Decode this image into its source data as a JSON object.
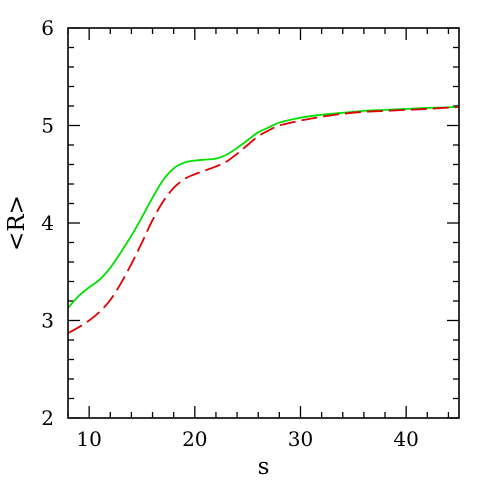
{
  "chart_data": {
    "type": "line",
    "title": "",
    "xlabel": "s",
    "ylabel": "<R>",
    "xlim": [
      8,
      45
    ],
    "ylim": [
      2,
      6
    ],
    "grid": false,
    "x_major_ticks": [
      10,
      20,
      30,
      40
    ],
    "x_minor_ticks": [
      8,
      12,
      14,
      16,
      18,
      22,
      24,
      26,
      28,
      32,
      34,
      36,
      38,
      42,
      44
    ],
    "y_major_ticks": [
      2,
      3,
      4,
      5,
      6
    ],
    "y_minor_ticks": [
      2.2,
      2.4,
      2.6,
      2.8,
      3.2,
      3.4,
      3.6,
      3.8,
      4.2,
      4.4,
      4.6,
      4.8,
      5.2,
      5.4,
      5.6,
      5.8
    ],
    "x_tick_labels": [
      "10",
      "20",
      "30",
      "40"
    ],
    "y_tick_labels": [
      "2",
      "3",
      "4",
      "5",
      "6"
    ],
    "series": [
      {
        "color": "#00e000",
        "style": "solid",
        "x": [
          8,
          9,
          10,
          11,
          12,
          13,
          14,
          15,
          16,
          17,
          18,
          19,
          20,
          21,
          22,
          23,
          24,
          25,
          26,
          27,
          28,
          30,
          32,
          34,
          36,
          38,
          40,
          42,
          45
        ],
        "y": [
          3.13,
          3.25,
          3.34,
          3.42,
          3.54,
          3.7,
          3.87,
          4.06,
          4.26,
          4.44,
          4.56,
          4.62,
          4.64,
          4.65,
          4.66,
          4.7,
          4.77,
          4.85,
          4.93,
          4.98,
          5.03,
          5.08,
          5.11,
          5.13,
          5.15,
          5.16,
          5.17,
          5.18,
          5.19
        ]
      },
      {
        "color": "#e00000",
        "style": "dashed",
        "x": [
          8,
          9,
          10,
          11,
          12,
          13,
          14,
          15,
          16,
          17,
          18,
          19,
          20,
          21,
          22,
          23,
          24,
          25,
          26,
          27,
          28,
          30,
          32,
          34,
          36,
          38,
          40,
          42,
          45
        ],
        "y": [
          2.87,
          2.93,
          3.0,
          3.09,
          3.21,
          3.38,
          3.58,
          3.8,
          4.03,
          4.22,
          4.36,
          4.45,
          4.5,
          4.54,
          4.58,
          4.63,
          4.71,
          4.8,
          4.89,
          4.95,
          5.0,
          5.05,
          5.09,
          5.12,
          5.14,
          5.15,
          5.16,
          5.17,
          5.19
        ]
      }
    ]
  }
}
